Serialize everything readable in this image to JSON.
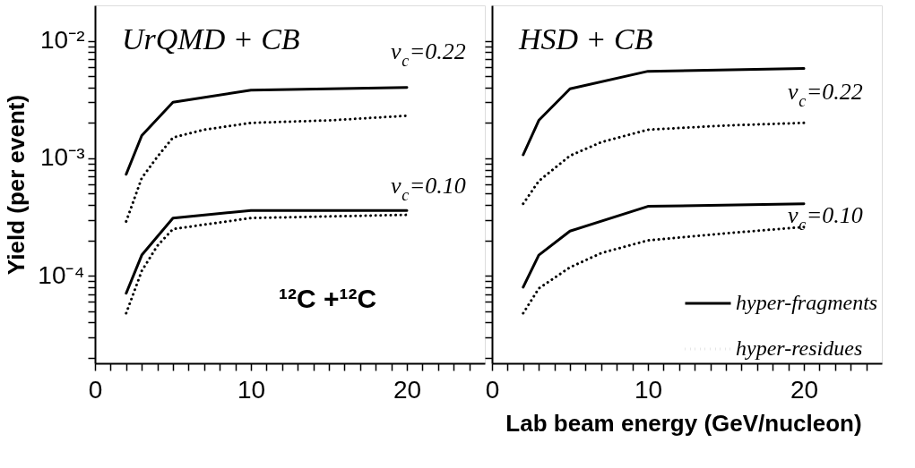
{
  "chart_data": [
    {
      "type": "line",
      "title": "UrQMD + CB",
      "xlabel": "Lab beam energy (GeV/nucleon)",
      "ylabel": "Yield (per event)",
      "log": "y",
      "legend": false,
      "xlim": [
        0,
        25
      ],
      "ylim": [
        1.8e-05,
        0.02
      ],
      "xticks": [
        0,
        {
          "value": 1,
          "label": null
        },
        {
          "value": 2,
          "label": null
        },
        {
          "value": 3,
          "label": null
        },
        {
          "value": 4,
          "label": null
        },
        {
          "value": 5,
          "label": null
        },
        {
          "value": 6,
          "label": null
        },
        {
          "value": 7,
          "label": null
        },
        {
          "value": 8,
          "label": null
        },
        {
          "value": 9,
          "label": null
        },
        10,
        {
          "value": 11,
          "label": null
        },
        {
          "value": 12,
          "label": null
        },
        {
          "value": 13,
          "label": null
        },
        {
          "value": 14,
          "label": null
        },
        {
          "value": 15,
          "label": null
        },
        {
          "value": 16,
          "label": null
        },
        {
          "value": 17,
          "label": null
        },
        {
          "value": 18,
          "label": null
        },
        {
          "value": 19,
          "label": null
        },
        20,
        {
          "value": 21,
          "label": null
        },
        {
          "value": 22,
          "label": null
        },
        {
          "value": 23,
          "label": null
        },
        {
          "value": 24,
          "label": null
        }
      ],
      "yticks": [
        {
          "value": 2e-05,
          "label": null
        },
        {
          "value": 3e-05,
          "label": null
        },
        {
          "value": 4e-05,
          "label": null
        },
        {
          "value": 5e-05,
          "label": null
        },
        {
          "value": 6e-05,
          "label": null
        },
        {
          "value": 7e-05,
          "label": null
        },
        {
          "value": 8e-05,
          "label": null
        },
        {
          "value": 9e-05,
          "label": null
        },
        {
          "value": 0.0001,
          "label": "10⁻⁴"
        },
        {
          "value": 0.0002,
          "label": null
        },
        {
          "value": 0.0003,
          "label": null
        },
        {
          "value": 0.0004,
          "label": null
        },
        {
          "value": 0.0005,
          "label": null
        },
        {
          "value": 0.0006,
          "label": null
        },
        {
          "value": 0.0007,
          "label": null
        },
        {
          "value": 0.0008,
          "label": null
        },
        {
          "value": 0.0009,
          "label": null
        },
        {
          "value": 0.001,
          "label": "10⁻³"
        },
        {
          "value": 0.002,
          "label": null
        },
        {
          "value": 0.003,
          "label": null
        },
        {
          "value": 0.004,
          "label": null
        },
        {
          "value": 0.005,
          "label": null
        },
        {
          "value": 0.006,
          "label": null
        },
        {
          "value": 0.007,
          "label": null
        },
        {
          "value": 0.008,
          "label": null
        },
        {
          "value": 0.009,
          "label": null
        },
        {
          "value": 0.01,
          "label": "10⁻²"
        }
      ],
      "series": [
        {
          "color": "#000000",
          "line_style": "solid",
          "x": [
            2,
            3,
            5,
            10,
            20
          ],
          "values": [
            0.00073,
            0.00156,
            0.003,
            0.0038,
            0.004
          ]
        },
        {
          "color": "#000000",
          "line_style": "dotted",
          "x": [
            2,
            3,
            4,
            5,
            7,
            10,
            15,
            20
          ],
          "values": [
            0.00029,
            0.00068,
            0.00103,
            0.0015,
            0.00175,
            0.002,
            0.0021,
            0.0023
          ]
        },
        {
          "color": "#000000",
          "line_style": "solid",
          "x": [
            2,
            3,
            5,
            10,
            20
          ],
          "values": [
            7.1e-05,
            0.00015,
            0.00031,
            0.00036,
            0.00036
          ]
        },
        {
          "color": "#000000",
          "line_style": "dotted",
          "x": [
            2,
            3,
            4,
            5,
            10,
            20
          ],
          "values": [
            4.8e-05,
            0.00011,
            0.00018,
            0.00025,
            0.00031,
            0.00033
          ]
        }
      ],
      "annotations": [
        "v$_{c}$=0.22",
        "v$_{c}$=0.10",
        "¹²C +¹²C"
      ]
    },
    {
      "type": "line",
      "title": "HSD + CB",
      "log": "y",
      "legend": "bottom right",
      "tick_labels": "x",
      "xlim": [
        0,
        25
      ],
      "ylim": [
        1.8e-05,
        0.02
      ],
      "xticks": [
        0,
        {
          "value": 1,
          "label": null
        },
        {
          "value": 2,
          "label": null
        },
        {
          "value": 3,
          "label": null
        },
        {
          "value": 4,
          "label": null
        },
        {
          "value": 5,
          "label": null
        },
        {
          "value": 6,
          "label": null
        },
        {
          "value": 7,
          "label": null
        },
        {
          "value": 8,
          "label": null
        },
        {
          "value": 9,
          "label": null
        },
        10,
        {
          "value": 11,
          "label": null
        },
        {
          "value": 12,
          "label": null
        },
        {
          "value": 13,
          "label": null
        },
        {
          "value": 14,
          "label": null
        },
        {
          "value": 15,
          "label": null
        },
        {
          "value": 16,
          "label": null
        },
        {
          "value": 17,
          "label": null
        },
        {
          "value": 18,
          "label": null
        },
        {
          "value": 19,
          "label": null
        },
        20,
        {
          "value": 21,
          "label": null
        },
        {
          "value": 22,
          "label": null
        },
        {
          "value": 23,
          "label": null
        },
        {
          "value": 24,
          "label": null
        }
      ],
      "yticks": [
        {
          "value": 2e-05,
          "label": null
        },
        {
          "value": 3e-05,
          "label": null
        },
        {
          "value": 4e-05,
          "label": null
        },
        {
          "value": 5e-05,
          "label": null
        },
        {
          "value": 6e-05,
          "label": null
        },
        {
          "value": 7e-05,
          "label": null
        },
        {
          "value": 8e-05,
          "label": null
        },
        {
          "value": 9e-05,
          "label": null
        },
        {
          "value": 0.0001,
          "label": null
        },
        {
          "value": 0.0002,
          "label": null
        },
        {
          "value": 0.0003,
          "label": null
        },
        {
          "value": 0.0004,
          "label": null
        },
        {
          "value": 0.0005,
          "label": null
        },
        {
          "value": 0.0006,
          "label": null
        },
        {
          "value": 0.0007,
          "label": null
        },
        {
          "value": 0.0008,
          "label": null
        },
        {
          "value": 0.0009,
          "label": null
        },
        {
          "value": 0.001,
          "label": null
        },
        {
          "value": 0.002,
          "label": null
        },
        {
          "value": 0.003,
          "label": null
        },
        {
          "value": 0.004,
          "label": null
        },
        {
          "value": 0.005,
          "label": null
        },
        {
          "value": 0.006,
          "label": null
        },
        {
          "value": 0.007,
          "label": null
        },
        {
          "value": 0.008,
          "label": null
        },
        {
          "value": 0.009,
          "label": null
        },
        {
          "value": 0.01,
          "label": null
        }
      ],
      "series": [
        {
          "name": "hyper-fragments",
          "color": "#000000",
          "line_style": "solid",
          "x": [
            2,
            3,
            5,
            10,
            20
          ],
          "values": [
            0.00107,
            0.0021,
            0.0039,
            0.0055,
            0.0058
          ]
        },
        {
          "name": "hyper-residues",
          "color": "#000000",
          "line_style": "dotted",
          "x": [
            2,
            3,
            5,
            7,
            10,
            15,
            20
          ],
          "values": [
            0.00041,
            0.00064,
            0.00105,
            0.00137,
            0.00175,
            0.0019,
            0.002
          ]
        },
        {
          "color": "#000000",
          "line_style": "solid",
          "x": [
            2,
            3,
            5,
            10,
            20
          ],
          "values": [
            8e-05,
            0.00015,
            0.00024,
            0.00039,
            0.00041
          ]
        },
        {
          "color": "#000000",
          "line_style": "dotted",
          "x": [
            2,
            3,
            5,
            7,
            10,
            15,
            20
          ],
          "values": [
            4.8e-05,
            7.8e-05,
            0.000118,
            0.000156,
            0.0002,
            0.00023,
            0.00026
          ]
        }
      ],
      "annotations": [
        "v$_{c}$=0.22",
        "v$_{c}$=0.10"
      ]
    }
  ]
}
